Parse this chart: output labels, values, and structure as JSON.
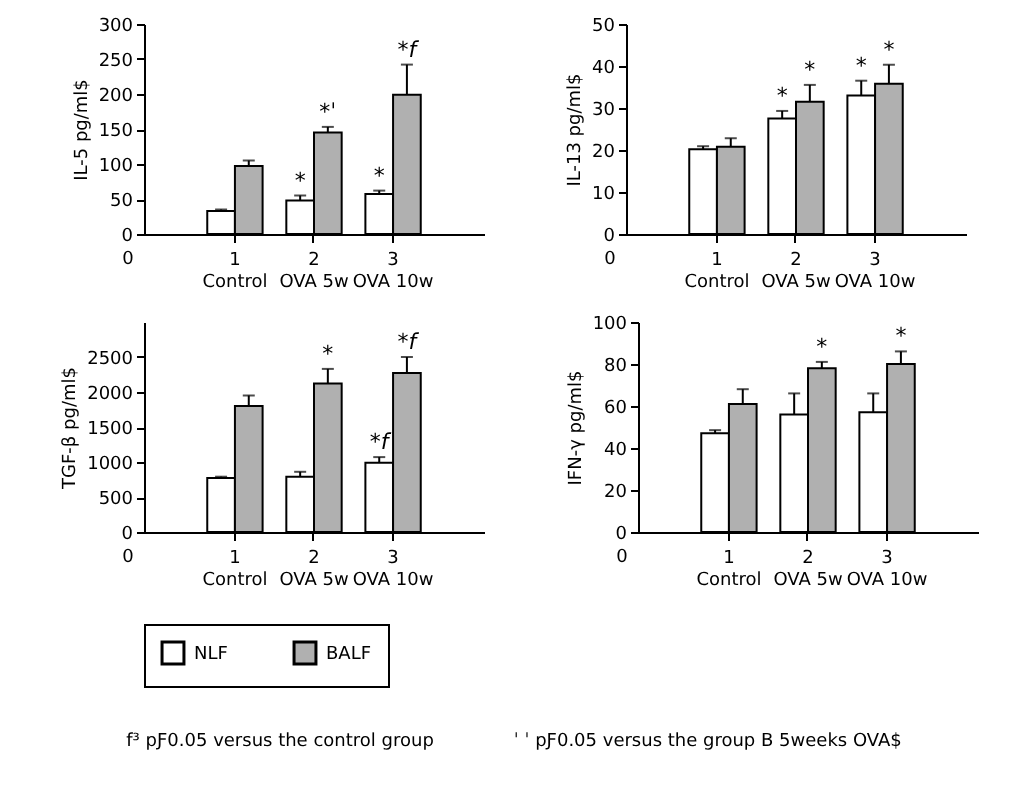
{
  "chart_data": [
    {
      "type": "bar",
      "categories": [
        "1\nControl",
        "2\nOVA 5w",
        "3\nOVA 10w"
      ],
      "ylabel": "IL-5  pg/ml$",
      "ylim": [
        0,
        300
      ],
      "yticks": [
        0,
        50,
        100,
        150,
        200,
        250,
        300
      ],
      "legend": "bottom",
      "grid": false,
      "series": [
        {
          "name": "NLF",
          "color": "#ffffff",
          "values": [
            33,
            48,
            57
          ],
          "errors": [
            [
              33,
              35
            ],
            [
              48,
              55
            ],
            [
              57,
              62
            ]
          ]
        },
        {
          "name": "BALF",
          "color": "#b0b0b0",
          "values": [
            97,
            145,
            199
          ],
          "errors": [
            [
              97,
              105
            ],
            [
              145,
              153
            ],
            [
              199,
              242
            ]
          ]
        }
      ],
      "annotations": [
        "0",
        {
          "text": "*",
          "x": "2\nOVA 5w",
          "y": 55
        },
        {
          "text": "*",
          "x": "3\nOVA 10w",
          "y": 62
        },
        {
          "text": "*ˈ",
          "x": "2\nOVA 5w",
          "y": 153
        },
        {
          "text": "*f",
          "x": "3\nOVA 10w",
          "y": 242
        }
      ]
    },
    {
      "type": "bar",
      "categories": [
        "1\nControl",
        "2\nOVA 5w",
        "3\nOVA 10w"
      ],
      "ylabel": "IL-13  pg/ml$",
      "ylim": [
        0,
        50
      ],
      "yticks": [
        0,
        10,
        20,
        30,
        40,
        50
      ],
      "legend": "bottom",
      "grid": false,
      "series": [
        {
          "name": "NLF",
          "color": "#ffffff",
          "values": [
            20.2,
            27.5,
            33
          ],
          "errors": [
            [
              20.2,
              20.9
            ],
            [
              27.5,
              29.3
            ],
            [
              33,
              36.5
            ]
          ]
        },
        {
          "name": "BALF",
          "color": "#b0b0b0",
          "values": [
            20.8,
            31.5,
            35.8
          ],
          "errors": [
            [
              20.8,
              22.8
            ],
            [
              31.5,
              35.5
            ],
            [
              35.8,
              40.3
            ]
          ]
        }
      ],
      "annotations": [
        "0",
        {
          "text": "*",
          "x": "2\nOVA 5w",
          "y": 29.3
        },
        {
          "text": "*",
          "x": "2\nOVA 5w",
          "y": 35.5
        },
        {
          "text": "*",
          "x": "3\nOVA 10w",
          "y": 36.5
        },
        {
          "text": "*",
          "x": "3\nOVA 10w",
          "y": 40.3
        }
      ]
    },
    {
      "type": "bar",
      "categories": [
        "1\nControl",
        "2\nOVA 5w",
        "3\nOVA 10w"
      ],
      "ylabel": "TGF-β  pg/ml$",
      "ylim": [
        0,
        3000
      ],
      "yticks": [
        0,
        500,
        1000,
        1500,
        2000,
        2500
      ],
      "legend": "bottom",
      "grid": false,
      "series": [
        {
          "name": "NLF",
          "color": "#ffffff",
          "values": [
            770,
            790,
            990
          ],
          "errors": [
            [
              770,
              790
            ],
            [
              790,
              860
            ],
            [
              990,
              1070
            ]
          ]
        },
        {
          "name": "BALF",
          "color": "#b0b0b0",
          "values": [
            1800,
            2120,
            2270
          ],
          "errors": [
            [
              1800,
              1950
            ],
            [
              2120,
              2330
            ],
            [
              2270,
              2500
            ]
          ]
        }
      ],
      "annotations": [
        "0",
        {
          "text": "*",
          "x": "2\nOVA 5w",
          "y": 2330
        },
        {
          "text": "*f",
          "x": "3\nOVA 10w",
          "y": 1070
        },
        {
          "text": "*f",
          "x": "3\nOVA 10w",
          "y": 2500
        }
      ]
    },
    {
      "type": "bar",
      "categories": [
        "1\nControl",
        "2\nOVA 5w",
        "3\nOVA 10w"
      ],
      "ylabel": "IFN-γ  pg/ml$",
      "ylim": [
        0,
        100
      ],
      "yticks": [
        0,
        20,
        40,
        60,
        80,
        100
      ],
      "legend": "bottom",
      "grid": false,
      "series": [
        {
          "name": "NLF",
          "color": "#ffffff",
          "values": [
            47,
            56,
            57
          ],
          "errors": [
            [
              47,
              48.5
            ],
            [
              56,
              66
            ],
            [
              57,
              66
            ]
          ]
        },
        {
          "name": "BALF",
          "color": "#b0b0b0",
          "values": [
            61,
            78,
            80
          ],
          "errors": [
            [
              61,
              68
            ],
            [
              78,
              81
            ],
            [
              80,
              86
            ]
          ]
        }
      ],
      "annotations": [
        "0",
        {
          "text": "*",
          "x": "2\nOVA 5w",
          "y": 81
        },
        {
          "text": "*",
          "x": "3\nOVA 10w",
          "y": 86
        },
        "f³  pƑ0.05 versus the control group",
        "ˈ ˈ  pƑ0.05 versus the group B  5weeks OVA$"
      ]
    }
  ]
}
